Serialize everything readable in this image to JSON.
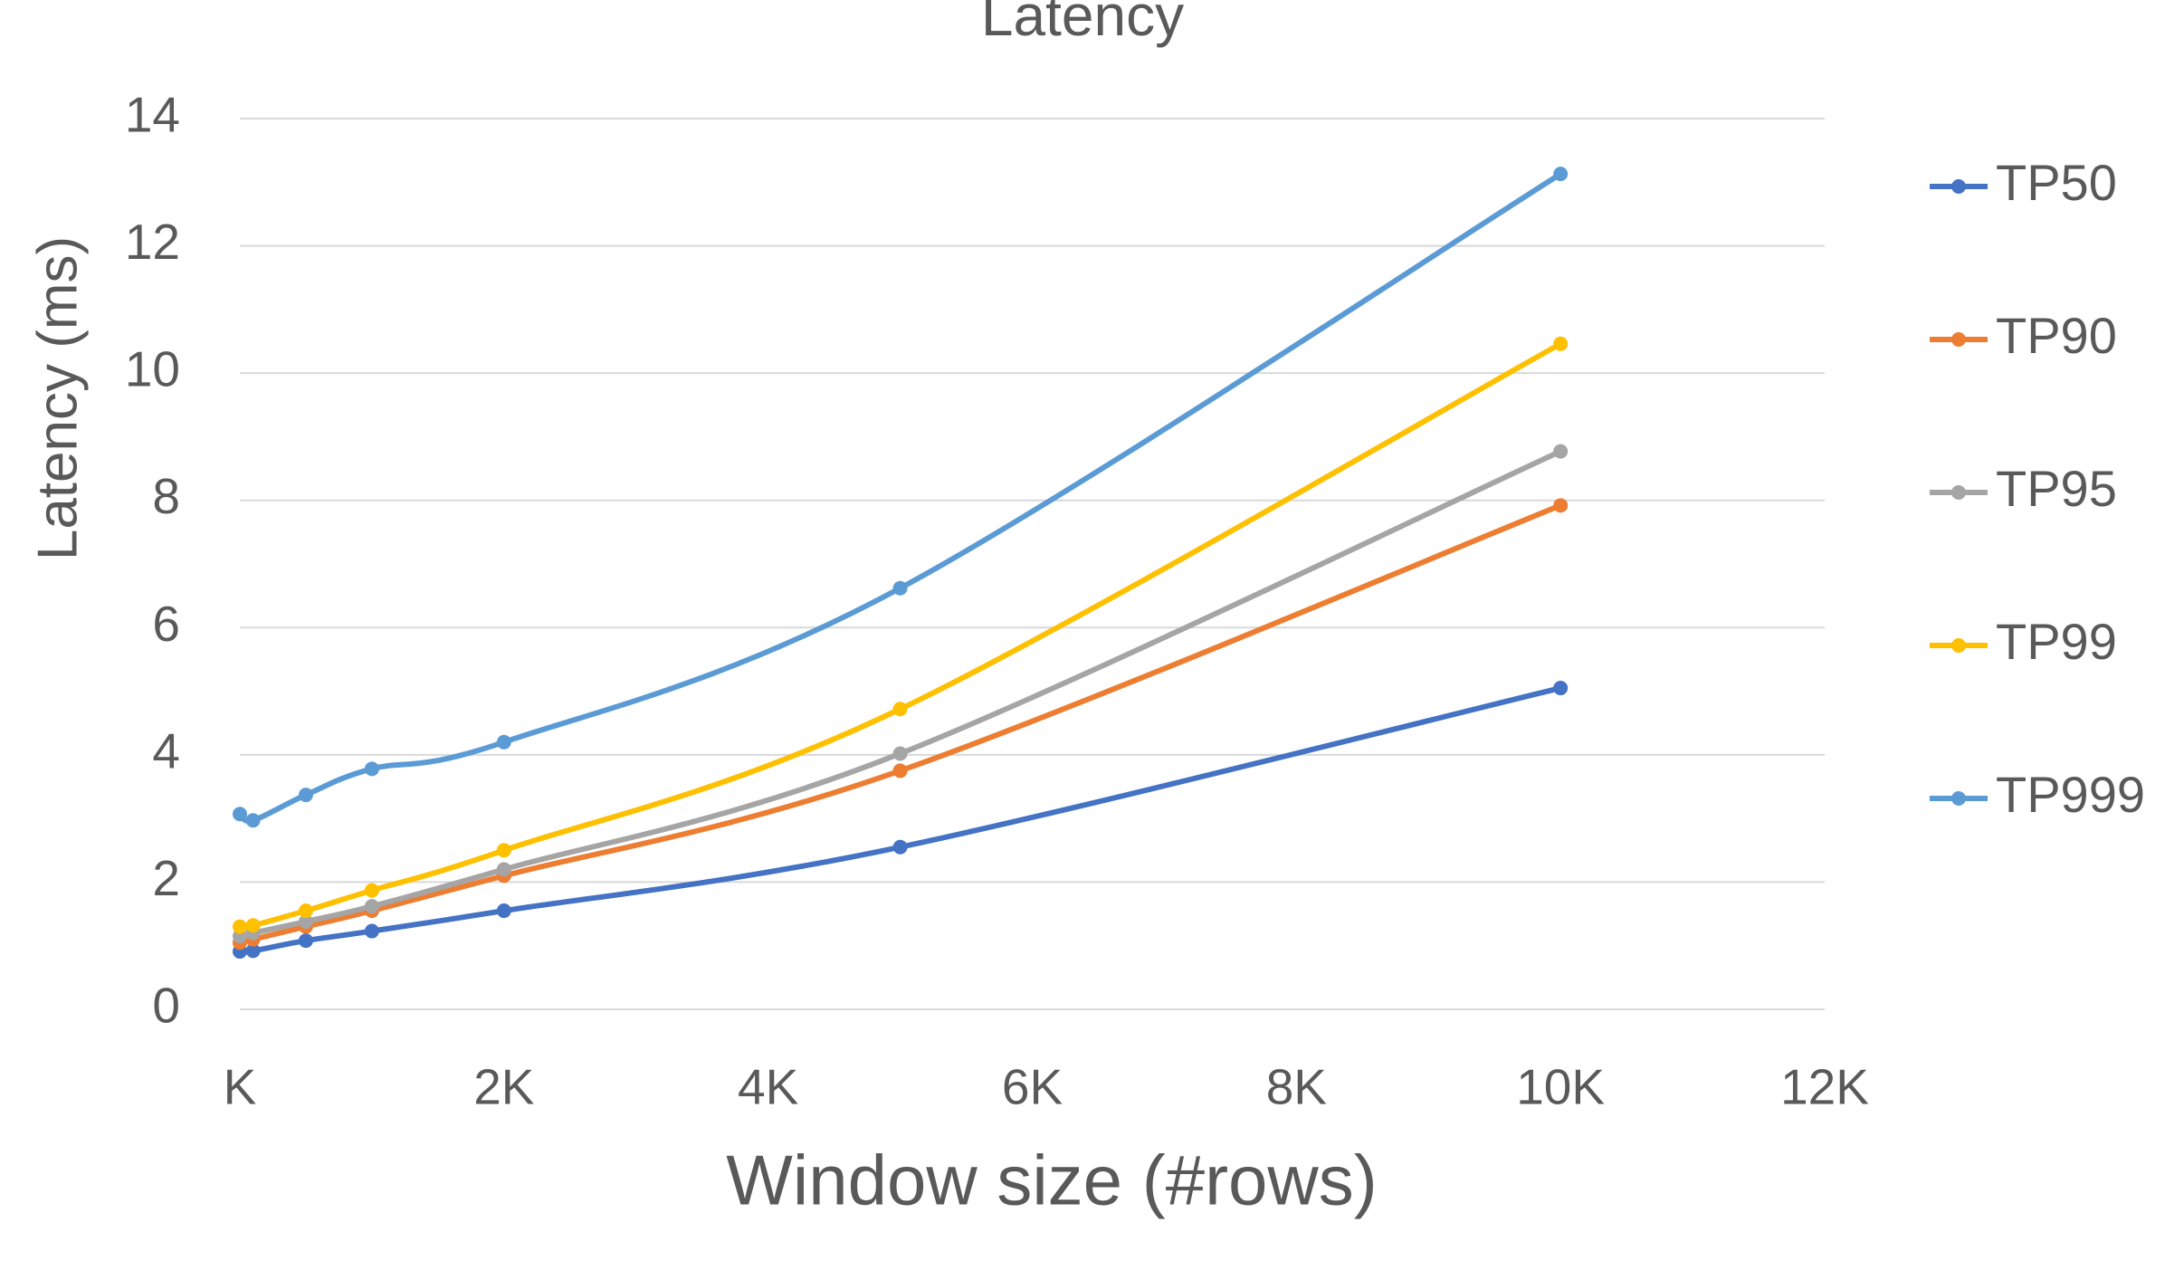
{
  "chart_data": {
    "type": "line",
    "title": "Latency",
    "x_label": "Window size (#rows)",
    "y_label": "Latency  (ms)",
    "x": [
      0,
      100,
      500,
      1000,
      2000,
      5000,
      10000
    ],
    "series": [
      {
        "name": "TP50",
        "color": "#4472c4",
        "values": [
          0.91,
          0.92,
          1.08,
          1.23,
          1.55,
          2.55,
          5.05
        ]
      },
      {
        "name": "TP90",
        "color": "#ed7d31",
        "values": [
          1.05,
          1.1,
          1.3,
          1.55,
          2.1,
          3.75,
          7.92
        ]
      },
      {
        "name": "TP95",
        "color": "#a5a5a5",
        "values": [
          1.15,
          1.2,
          1.38,
          1.62,
          2.2,
          4.02,
          8.77
        ]
      },
      {
        "name": "TP99",
        "color": "#ffc000",
        "values": [
          1.3,
          1.32,
          1.55,
          1.87,
          2.5,
          4.72,
          10.46
        ]
      },
      {
        "name": "TP999",
        "color": "#5b9bd5",
        "values": [
          3.07,
          2.97,
          3.37,
          3.78,
          4.2,
          6.62,
          13.13
        ]
      }
    ],
    "xlim": [
      0,
      12000
    ],
    "xticks": [
      {
        "value": 0,
        "label": "K"
      },
      {
        "value": 2000,
        "label": "2K"
      },
      {
        "value": 4000,
        "label": "4K"
      },
      {
        "value": 6000,
        "label": "6K"
      },
      {
        "value": 8000,
        "label": "8K"
      },
      {
        "value": 10000,
        "label": "10K"
      },
      {
        "value": 12000,
        "label": "12K"
      }
    ],
    "ylim": [
      0,
      14
    ],
    "yticks": [
      0,
      2,
      4,
      6,
      8,
      10,
      12,
      14
    ],
    "grid": true,
    "smooth": true,
    "legend": "right"
  }
}
